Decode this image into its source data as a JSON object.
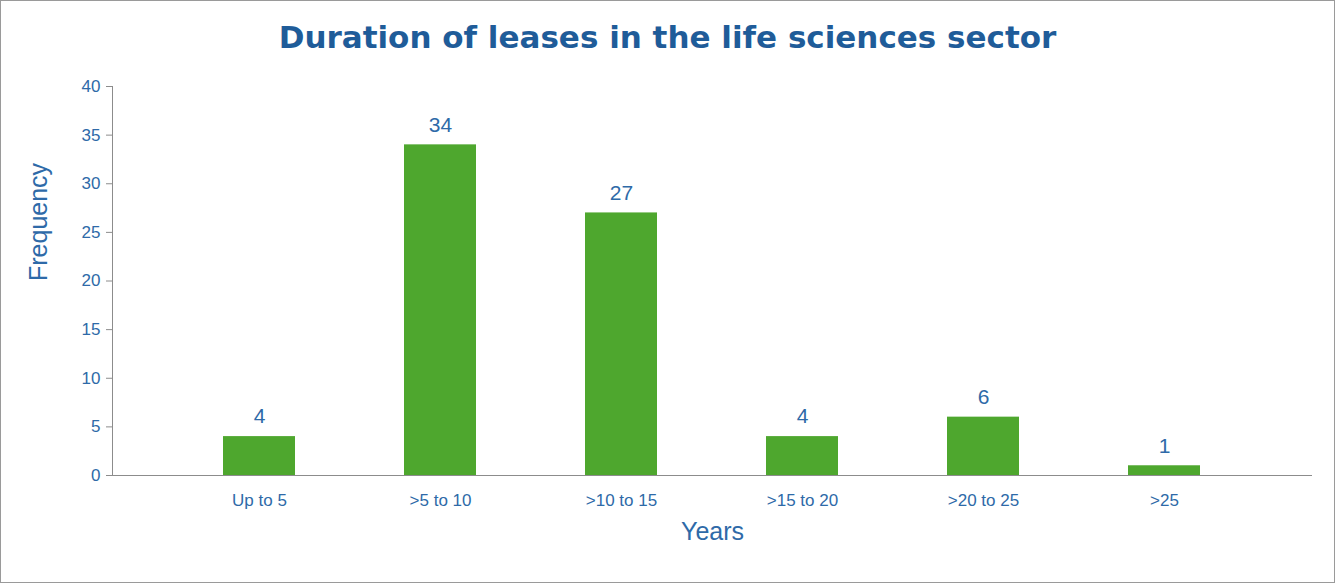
{
  "chart_data": {
    "type": "bar",
    "title": "Duration of leases in the life sciences sector",
    "categories": [
      "Up to 5",
      ">5 to 10",
      ">10 to 15",
      ">15 to 20",
      ">20 to 25",
      ">25"
    ],
    "values": [
      4,
      34,
      27,
      4,
      6,
      1
    ],
    "color": "#4ea72e",
    "xlabel": "Years",
    "ylabel": "Frequency",
    "ylim": [
      0,
      40
    ],
    "yticks": [
      0,
      5,
      10,
      15,
      20,
      25,
      30,
      35,
      40
    ],
    "grid": false,
    "data_labels": true
  }
}
